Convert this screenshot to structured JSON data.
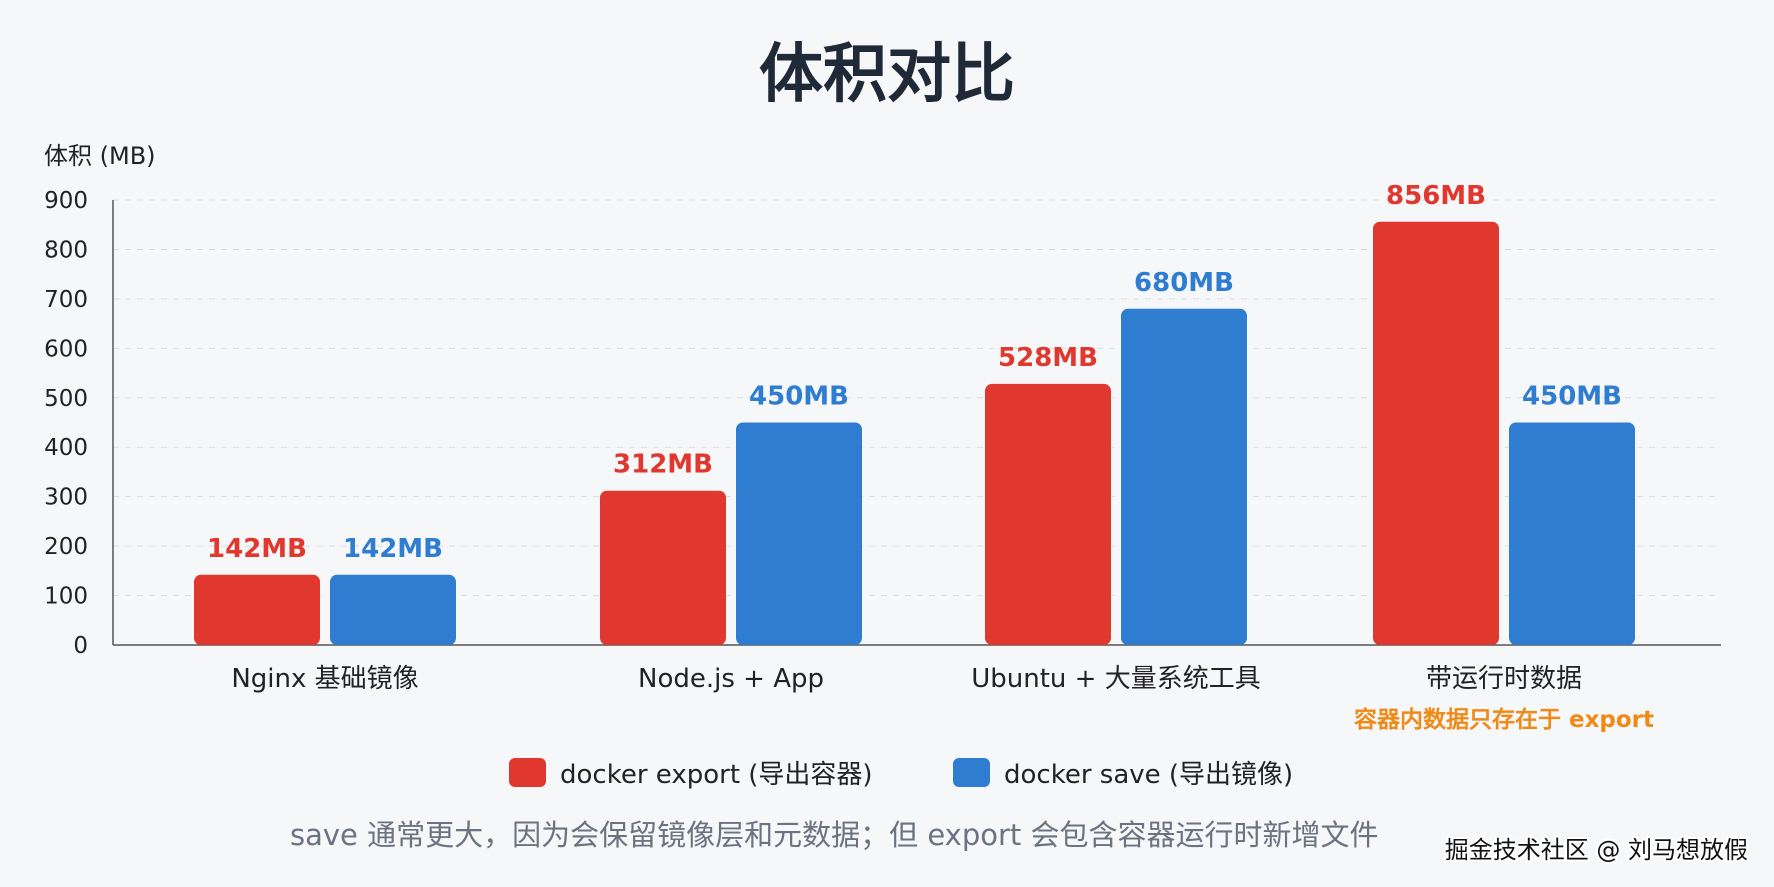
{
  "chart_data": {
    "type": "bar",
    "title": "体积对比",
    "ylabel": "体积 (MB)",
    "xlabel": "",
    "ylim": [
      0,
      900
    ],
    "yticks": [
      0,
      100,
      200,
      300,
      400,
      500,
      600,
      700,
      800,
      900
    ],
    "grid": "horizontal-dashed",
    "categories": [
      "Nginx 基础镜像",
      "Node.js + App",
      "Ubuntu + 大量系统工具",
      "带运行时数据"
    ],
    "category_notes": [
      "",
      "",
      "",
      "容器内数据只存在于 export"
    ],
    "series": [
      {
        "name": "docker export (导出容器)",
        "color": "#e0372f",
        "values": [
          142,
          312,
          528,
          856
        ],
        "labels": [
          "142MB",
          "312MB",
          "528MB",
          "856MB"
        ]
      },
      {
        "name": "docker save (导出镜像)",
        "color": "#2f7dd1",
        "values": [
          142,
          450,
          680,
          450
        ],
        "labels": [
          "142MB",
          "450MB",
          "680MB",
          "450MB"
        ]
      }
    ],
    "legend": "bottom",
    "note_color": "#f08a17"
  },
  "caption": "save 通常更大，因为会保留镜像层和元数据；但 export 会包含容器运行时新增文件",
  "watermark": "掘金技术社区 @ 刘马想放假"
}
